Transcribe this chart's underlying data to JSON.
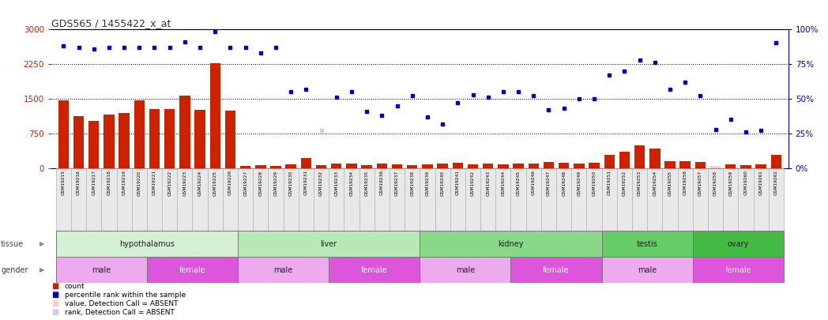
{
  "title": "GDS565 / 1455422_x_at",
  "samples": [
    "GSM19215",
    "GSM19216",
    "GSM19217",
    "GSM19218",
    "GSM19219",
    "GSM19220",
    "GSM19221",
    "GSM19222",
    "GSM19223",
    "GSM19224",
    "GSM19225",
    "GSM19226",
    "GSM19227",
    "GSM19228",
    "GSM19229",
    "GSM19230",
    "GSM19231",
    "GSM19232",
    "GSM19233",
    "GSM19234",
    "GSM19235",
    "GSM19236",
    "GSM19237",
    "GSM19238",
    "GSM19239",
    "GSM19240",
    "GSM19241",
    "GSM19242",
    "GSM19243",
    "GSM19244",
    "GSM19245",
    "GSM19246",
    "GSM19247",
    "GSM19248",
    "GSM19249",
    "GSM19250",
    "GSM19251",
    "GSM19252",
    "GSM19253",
    "GSM19254",
    "GSM19255",
    "GSM19256",
    "GSM19257",
    "GSM19258",
    "GSM19259",
    "GSM19260",
    "GSM19261",
    "GSM19262"
  ],
  "counts": [
    1460,
    1120,
    1020,
    1160,
    1200,
    1460,
    1280,
    1270,
    1570,
    1260,
    2260,
    1250,
    55,
    75,
    60,
    80,
    230,
    70,
    100,
    110,
    75,
    95,
    80,
    75,
    80,
    100,
    120,
    85,
    95,
    90,
    100,
    110,
    130,
    120,
    110,
    115,
    290,
    350,
    500,
    420,
    160,
    160,
    140,
    45,
    90,
    75,
    85,
    290
  ],
  "percentile_ranks": [
    88,
    87,
    86,
    87,
    87,
    87,
    87,
    87,
    91,
    87,
    98,
    87,
    87,
    83,
    87,
    55,
    57,
    27,
    51,
    55,
    41,
    38,
    45,
    52,
    37,
    32,
    47,
    53,
    51,
    55,
    55,
    52,
    42,
    43,
    50,
    50,
    67,
    70,
    78,
    76,
    57,
    62,
    52,
    28,
    35,
    26,
    27,
    90
  ],
  "absent_mask_count": [
    false,
    false,
    false,
    false,
    false,
    false,
    false,
    false,
    false,
    false,
    false,
    false,
    false,
    false,
    false,
    false,
    false,
    false,
    false,
    false,
    false,
    false,
    false,
    false,
    false,
    false,
    false,
    false,
    false,
    false,
    false,
    false,
    false,
    false,
    false,
    false,
    false,
    false,
    false,
    false,
    false,
    false,
    false,
    true,
    false,
    false,
    false,
    false
  ],
  "absent_mask_rank": [
    false,
    false,
    false,
    false,
    false,
    false,
    false,
    false,
    false,
    false,
    false,
    false,
    false,
    false,
    false,
    false,
    false,
    true,
    false,
    false,
    false,
    false,
    false,
    false,
    false,
    false,
    false,
    false,
    false,
    false,
    false,
    false,
    false,
    false,
    false,
    false,
    false,
    false,
    false,
    false,
    false,
    false,
    false,
    false,
    false,
    false,
    false,
    false
  ],
  "tissue_groups": [
    {
      "label": "hypothalamus",
      "start": 0,
      "end": 11,
      "color": "#d5f0d5"
    },
    {
      "label": "liver",
      "start": 12,
      "end": 23,
      "color": "#b8e8b8"
    },
    {
      "label": "kidney",
      "start": 24,
      "end": 35,
      "color": "#90d890"
    },
    {
      "label": "testis",
      "start": 36,
      "end": 41,
      "color": "#68c868"
    },
    {
      "label": "ovary",
      "start": 42,
      "end": 47,
      "color": "#44bb44"
    }
  ],
  "gender_groups": [
    {
      "label": "male",
      "start": 0,
      "end": 5,
      "color": "#eeaaee"
    },
    {
      "label": "female",
      "start": 6,
      "end": 11,
      "color": "#dd55dd"
    },
    {
      "label": "male",
      "start": 12,
      "end": 17,
      "color": "#eeaaee"
    },
    {
      "label": "female",
      "start": 18,
      "end": 23,
      "color": "#dd55dd"
    },
    {
      "label": "male",
      "start": 24,
      "end": 29,
      "color": "#eeaaee"
    },
    {
      "label": "female",
      "start": 30,
      "end": 35,
      "color": "#dd55dd"
    },
    {
      "label": "male",
      "start": 36,
      "end": 41,
      "color": "#eeaaee"
    },
    {
      "label": "female",
      "start": 42,
      "end": 47,
      "color": "#dd55dd"
    }
  ],
  "ylim_left": [
    0,
    3000
  ],
  "ylim_right": [
    0,
    100
  ],
  "yticks_left": [
    0,
    750,
    1500,
    2250,
    3000
  ],
  "yticks_right": [
    0,
    25,
    50,
    75,
    100
  ],
  "bar_color": "#cc2200",
  "dot_color": "#0000cc",
  "absent_count_color": "#ffcccc",
  "absent_rank_color": "#ccccff",
  "left_axis_color": "#cc2200",
  "right_axis_color": "#0000cc",
  "title_color": "#333333"
}
